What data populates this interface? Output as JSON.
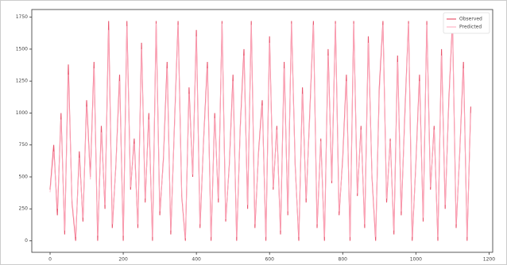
{
  "chart_data": {
    "type": "line",
    "legend": "upper right",
    "xlim": [
      -50,
      1210
    ],
    "ylim": [
      -90,
      1810
    ],
    "xticks": [
      0,
      200,
      400,
      600,
      800,
      1000,
      1200
    ],
    "yticks": [
      0,
      250,
      500,
      750,
      1000,
      1250,
      1500,
      1750
    ],
    "x": [
      0,
      10,
      20,
      30,
      40,
      50,
      60,
      70,
      80,
      90,
      100,
      110,
      120,
      130,
      140,
      150,
      160,
      170,
      180,
      190,
      200,
      210,
      220,
      230,
      240,
      250,
      260,
      270,
      280,
      290,
      300,
      310,
      320,
      330,
      340,
      350,
      360,
      370,
      380,
      390,
      400,
      410,
      420,
      430,
      440,
      450,
      460,
      470,
      480,
      490,
      500,
      510,
      520,
      530,
      540,
      550,
      560,
      570,
      580,
      590,
      600,
      610,
      620,
      630,
      640,
      650,
      660,
      670,
      680,
      690,
      700,
      710,
      720,
      730,
      740,
      750,
      760,
      770,
      780,
      790,
      800,
      810,
      820,
      830,
      840,
      850,
      860,
      870,
      880,
      890,
      900,
      910,
      920,
      930,
      940,
      950,
      960,
      970,
      980,
      990,
      1000,
      1010,
      1020,
      1030,
      1040,
      1050,
      1060,
      1070,
      1080,
      1090,
      1100,
      1110,
      1120,
      1130,
      1140,
      1150
    ],
    "series": [
      {
        "name": "Observed",
        "color": "#e8566e",
        "values": [
          400,
          750,
          200,
          1000,
          50,
          1380,
          300,
          0,
          700,
          150,
          1100,
          500,
          1400,
          0,
          900,
          250,
          1720,
          100,
          600,
          1300,
          0,
          1720,
          400,
          800,
          100,
          1550,
          300,
          1000,
          0,
          1720,
          200,
          650,
          1400,
          50,
          900,
          1720,
          350,
          0,
          1200,
          500,
          1650,
          100,
          800,
          1400,
          0,
          1000,
          300,
          1720,
          150,
          600,
          1300,
          0,
          900,
          1500,
          250,
          1720,
          100,
          700,
          1100,
          0,
          1600,
          400,
          900,
          50,
          1400,
          200,
          1720,
          600,
          0,
          1200,
          300,
          1000,
          1720,
          100,
          800,
          0,
          1500,
          450,
          1720,
          200,
          650,
          1300,
          0,
          1720,
          350,
          900,
          100,
          1600,
          500,
          0,
          1200,
          1720,
          300,
          800,
          50,
          1450,
          200,
          1000,
          1720,
          0,
          600,
          1300,
          150,
          1720,
          400,
          900,
          0,
          1500,
          250,
          1100,
          1720,
          100,
          700,
          1400,
          0,
          1050
        ]
      },
      {
        "name": "Predicted",
        "color": "#ffb3c6",
        "values": [
          380,
          700,
          250,
          950,
          80,
          1300,
          320,
          30,
          650,
          180,
          1050,
          480,
          1350,
          40,
          850,
          280,
          1650,
          130,
          580,
          1250,
          40,
          1680,
          420,
          760,
          130,
          1500,
          330,
          950,
          30,
          1700,
          230,
          620,
          1350,
          80,
          870,
          1690,
          370,
          20,
          1150,
          520,
          1600,
          130,
          780,
          1350,
          30,
          960,
          330,
          1700,
          170,
          580,
          1250,
          30,
          870,
          1450,
          280,
          1690,
          130,
          680,
          1060,
          30,
          1550,
          420,
          870,
          80,
          1350,
          230,
          1700,
          580,
          30,
          1150,
          330,
          960,
          1690,
          130,
          780,
          30,
          1450,
          470,
          1700,
          230,
          620,
          1250,
          30,
          1700,
          370,
          870,
          130,
          1550,
          520,
          30,
          1150,
          1690,
          330,
          780,
          80,
          1400,
          230,
          960,
          1700,
          30,
          580,
          1250,
          180,
          1690,
          420,
          870,
          30,
          1450,
          280,
          1060,
          1690,
          130,
          680,
          1350,
          30,
          1000
        ]
      }
    ]
  }
}
